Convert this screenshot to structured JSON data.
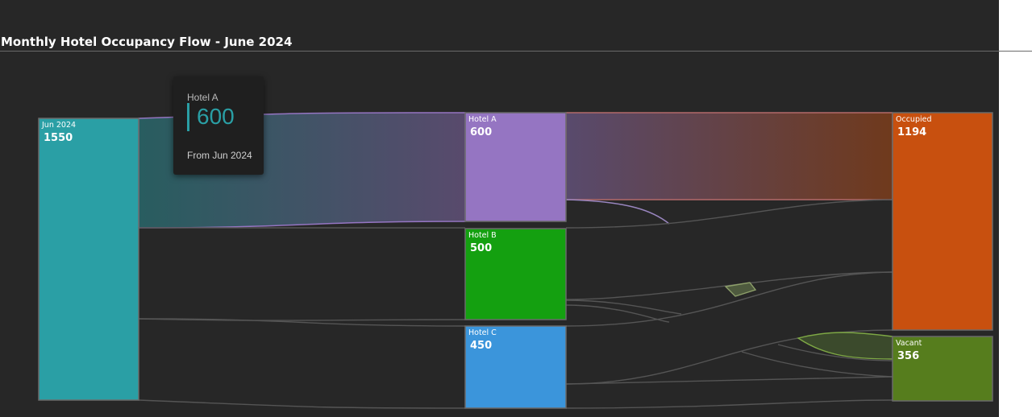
{
  "title": "Monthly Hotel Occupancy Flow - June 2024",
  "chart_data": {
    "type": "sankey",
    "nodes": [
      {
        "id": "jun",
        "name": "Jun 2024",
        "value": 1550,
        "color": "#2a9fa5"
      },
      {
        "id": "a",
        "name": "Hotel A",
        "value": 600,
        "color": "#9575c2"
      },
      {
        "id": "b",
        "name": "Hotel B",
        "value": 500,
        "color": "#14a010"
      },
      {
        "id": "c",
        "name": "Hotel C",
        "value": 450,
        "color": "#3b95db"
      },
      {
        "id": "occ",
        "name": "Occupied",
        "value": 1194,
        "color": "#c8500f"
      },
      {
        "id": "vac",
        "name": "Vacant",
        "value": 356,
        "color": "#567d1d"
      }
    ],
    "links": [
      {
        "source": "Jun 2024",
        "target": "Hotel A",
        "value": 600
      },
      {
        "source": "Jun 2024",
        "target": "Hotel B",
        "value": 500
      },
      {
        "source": "Jun 2024",
        "target": "Hotel C",
        "value": 450
      },
      {
        "source": "Hotel A",
        "target": "Occupied",
        "value": 480
      },
      {
        "source": "Hotel A",
        "target": "Vacant",
        "value": 120
      },
      {
        "source": "Hotel B",
        "target": "Occupied",
        "value": 380
      },
      {
        "source": "Hotel B",
        "target": "Vacant",
        "value": 120
      },
      {
        "source": "Hotel C",
        "target": "Occupied",
        "value": 334
      },
      {
        "source": "Hotel C",
        "target": "Vacant",
        "value": 116
      }
    ],
    "highlighted_node": "Hotel A"
  },
  "tooltip": {
    "name": "Hotel A",
    "value": "600",
    "from": "From Jun 2024"
  }
}
